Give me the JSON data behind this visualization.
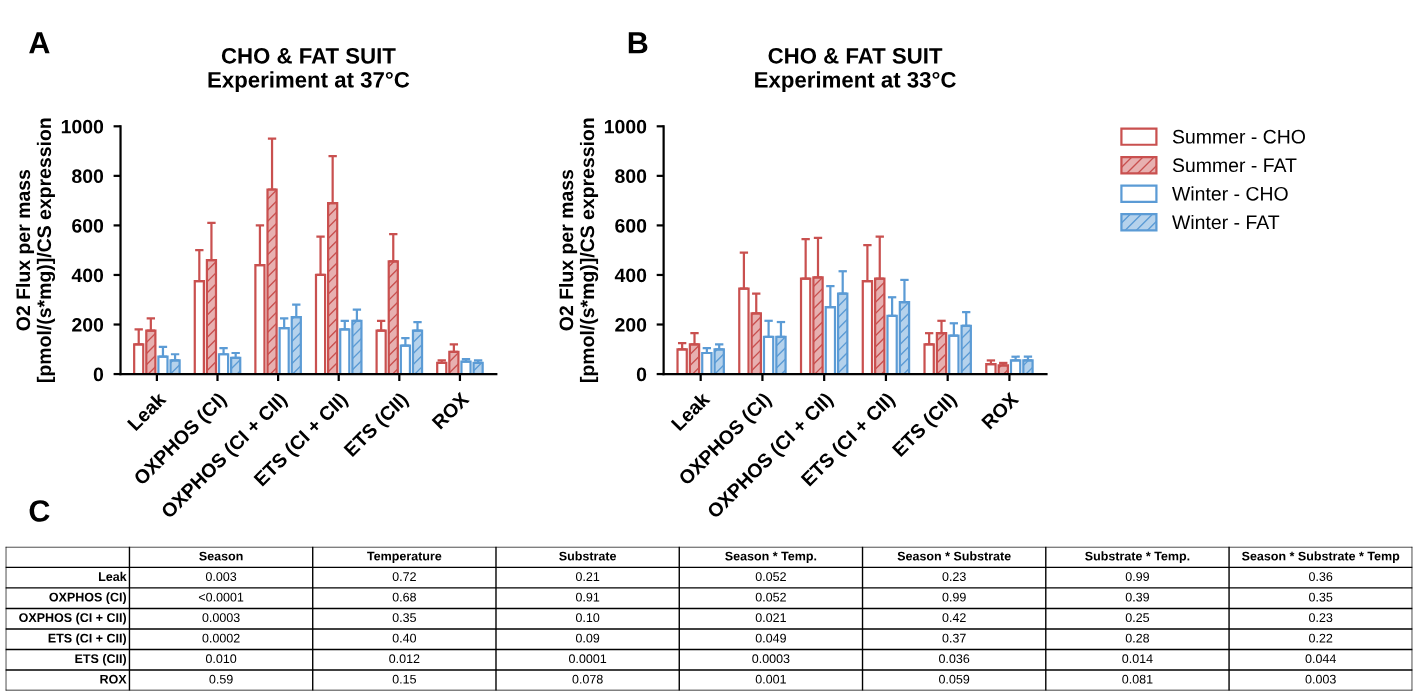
{
  "chart_data": [
    {
      "type": "bar",
      "title": "CHO & FAT SUIT\nExperiment at 37°C",
      "ylabel": "O2 Flux per mass\n[pmol/(s*mg)]/CS expression",
      "annotations": [
        "A"
      ],
      "categories": [
        "Leak",
        "OXPHOS (CI)",
        "OXPHOS (CI + CII)",
        "ETS (CI + CII)",
        "ETS (CII)",
        "ROX"
      ],
      "ylim": [
        0,
        1000
      ],
      "yticks": [
        0,
        200,
        400,
        600,
        800,
        1000
      ],
      "grid": false,
      "series": [
        {
          "color": "#c9504f",
          "values": [
            120,
            375,
            440,
            400,
            175,
            45
          ],
          "errors": [
            [
              120,
              180
            ],
            [
              375,
              500
            ],
            [
              440,
              600
            ],
            [
              400,
              555
            ],
            [
              175,
              215
            ],
            [
              45,
              55
            ]
          ]
        },
        {
          "color": "#c9504f",
          "values": [
            175,
            460,
            745,
            690,
            455,
            90
          ],
          "errors": [
            [
              175,
              225
            ],
            [
              460,
              610
            ],
            [
              745,
              950
            ],
            [
              690,
              880
            ],
            [
              455,
              565
            ],
            [
              90,
              120
            ]
          ]
        },
        {
          "color": "#5b9bd5",
          "values": [
            70,
            80,
            185,
            180,
            115,
            50
          ],
          "errors": [
            [
              70,
              110
            ],
            [
              80,
              105
            ],
            [
              185,
              225
            ],
            [
              180,
              215
            ],
            [
              115,
              145
            ],
            [
              50,
              60
            ]
          ]
        },
        {
          "color": "#5b9bd5",
          "values": [
            55,
            65,
            230,
            215,
            175,
            45
          ],
          "errors": [
            [
              55,
              80
            ],
            [
              65,
              85
            ],
            [
              230,
              280
            ],
            [
              215,
              260
            ],
            [
              175,
              210
            ],
            [
              45,
              55
            ]
          ]
        }
      ]
    },
    {
      "type": "bar",
      "title": "CHO & FAT SUIT\nExperiment at 33°C",
      "ylabel": "O2 Flux per mass\n[pmol/(s*mg)]/CS expression",
      "annotations": [
        "B"
      ],
      "categories": [
        "Leak",
        "OXPHOS (CI)",
        "OXPHOS (CI + CII)",
        "ETS (CI + CII)",
        "ETS (CII)",
        "ROX"
      ],
      "ylim": [
        0,
        1000
      ],
      "yticks": [
        0,
        200,
        400,
        600,
        800,
        1000
      ],
      "grid": false,
      "legend": "right",
      "series": [
        {
          "name": "Summer - CHO",
          "color": "#c9504f",
          "values": [
            100,
            345,
            385,
            375,
            120,
            40
          ],
          "errors": [
            [
              100,
              125
            ],
            [
              345,
              490
            ],
            [
              385,
              545
            ],
            [
              375,
              520
            ],
            [
              120,
              165
            ],
            [
              40,
              55
            ]
          ]
        },
        {
          "name": "Summer - FAT",
          "color": "#c9504f",
          "values": [
            120,
            245,
            390,
            385,
            165,
            35
          ],
          "errors": [
            [
              120,
              165
            ],
            [
              245,
              325
            ],
            [
              390,
              550
            ],
            [
              385,
              555
            ],
            [
              165,
              215
            ],
            [
              35,
              45
            ]
          ]
        },
        {
          "name": "Winter - CHO",
          "color": "#5b9bd5",
          "values": [
            85,
            150,
            270,
            235,
            155,
            55
          ],
          "errors": [
            [
              85,
              105
            ],
            [
              150,
              215
            ],
            [
              270,
              355
            ],
            [
              235,
              310
            ],
            [
              155,
              205
            ],
            [
              55,
              70
            ]
          ]
        },
        {
          "name": "Winter - FAT",
          "color": "#5b9bd5",
          "values": [
            100,
            150,
            325,
            290,
            195,
            55
          ],
          "errors": [
            [
              100,
              120
            ],
            [
              150,
              210
            ],
            [
              325,
              415
            ],
            [
              290,
              380
            ],
            [
              195,
              250
            ],
            [
              55,
              70
            ]
          ]
        }
      ]
    },
    {
      "type": "other",
      "annotations": [
        "C"
      ],
      "categories": [
        null,
        "Season",
        "Temperature",
        "Substrate",
        "Season * Temp.",
        "Season * Substrate",
        "Substrate * Temp.",
        "Season * Substrate * Temp"
      ],
      "y_categories": [
        "Leak",
        "OXPHOS (CI)",
        "OXPHOS (CI + CII)",
        "ETS (CI + CII)",
        "ETS (CII)",
        "ROX"
      ],
      "cell_labels": [
        [
          "0.003",
          "0.72",
          "0.21",
          "0.052",
          "0.23",
          "0.99",
          "0.36"
        ],
        [
          "<0.0001",
          "0.68",
          "0.91",
          "0.052",
          "0.99",
          "0.39",
          "0.35"
        ],
        [
          "0.0003",
          "0.35",
          "0.10",
          "0.021",
          "0.42",
          "0.25",
          "0.23"
        ],
        [
          "0.0002",
          "0.40",
          "0.09",
          "0.049",
          "0.37",
          "0.28",
          "0.22"
        ],
        [
          "0.010",
          "0.012",
          "0.0001",
          "0.0003",
          "0.036",
          "0.014",
          "0.044"
        ],
        [
          "0.59",
          "0.15",
          "0.078",
          "0.001",
          "0.059",
          "0.081",
          "0.003"
        ]
      ]
    }
  ]
}
